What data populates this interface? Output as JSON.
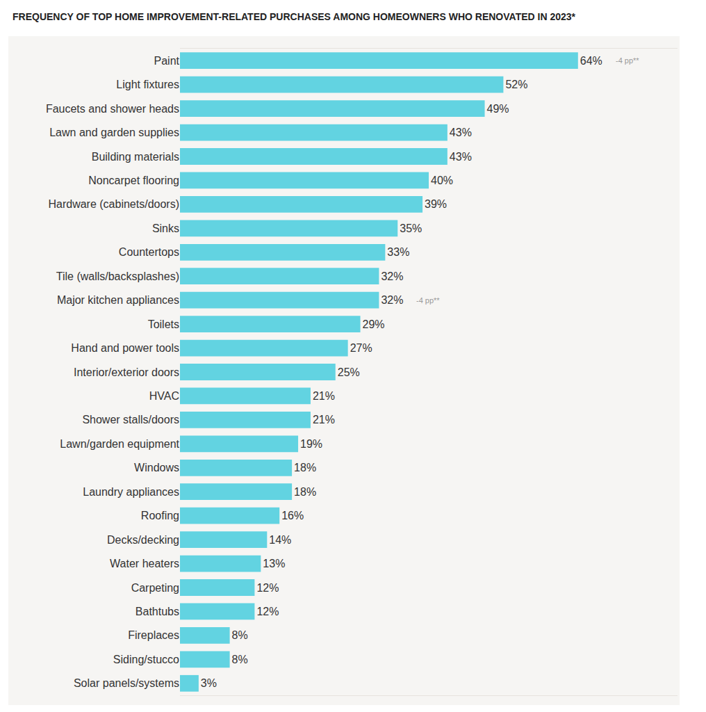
{
  "chart_data": {
    "type": "bar",
    "title": "FREQUENCY OF TOP HOME IMPROVEMENT-RELATED PURCHASES AMONG HOMEOWNERS WHO RENOVATED IN 2023*",
    "orientation": "horizontal",
    "categories": [
      "Paint",
      "Light fixtures",
      "Faucets and shower heads",
      "Lawn and garden supplies",
      "Building materials",
      "Noncarpet flooring",
      "Hardware (cabinets/doors)",
      "Sinks",
      "Countertops",
      "Tile (walls/backsplashes)",
      "Major kitchen appliances",
      "Toilets",
      "Hand and power tools",
      "Interior/exterior doors",
      "HVAC",
      "Shower stalls/doors",
      "Lawn/garden equipment",
      "Windows",
      "Laundry appliances",
      "Roofing",
      "Decks/decking",
      "Water heaters",
      "Carpeting",
      "Bathtubs",
      "Fireplaces",
      "Siding/stucco",
      "Solar panels/systems"
    ],
    "values": [
      64,
      52,
      49,
      43,
      43,
      40,
      39,
      35,
      33,
      32,
      32,
      29,
      27,
      25,
      21,
      21,
      19,
      18,
      18,
      16,
      14,
      13,
      12,
      12,
      8,
      8,
      3
    ],
    "value_labels": [
      "64%",
      "52%",
      "49%",
      "43%",
      "43%",
      "40%",
      "39%",
      "35%",
      "33%",
      "32%",
      "32%",
      "29%",
      "27%",
      "25%",
      "21%",
      "21%",
      "19%",
      "18%",
      "18%",
      "16%",
      "14%",
      "13%",
      "12%",
      "12%",
      "8%",
      "8%",
      "3%"
    ],
    "color": "#62d3e1",
    "data_labels": true,
    "tick_labels": "y",
    "grid": false,
    "xlim": [
      0,
      80
    ],
    "xticks": [],
    "annotations": [
      {
        "text": "-4 pp**",
        "category": "Paint"
      },
      {
        "text": "-4 pp**",
        "category": "Major kitchen appliances"
      }
    ]
  }
}
